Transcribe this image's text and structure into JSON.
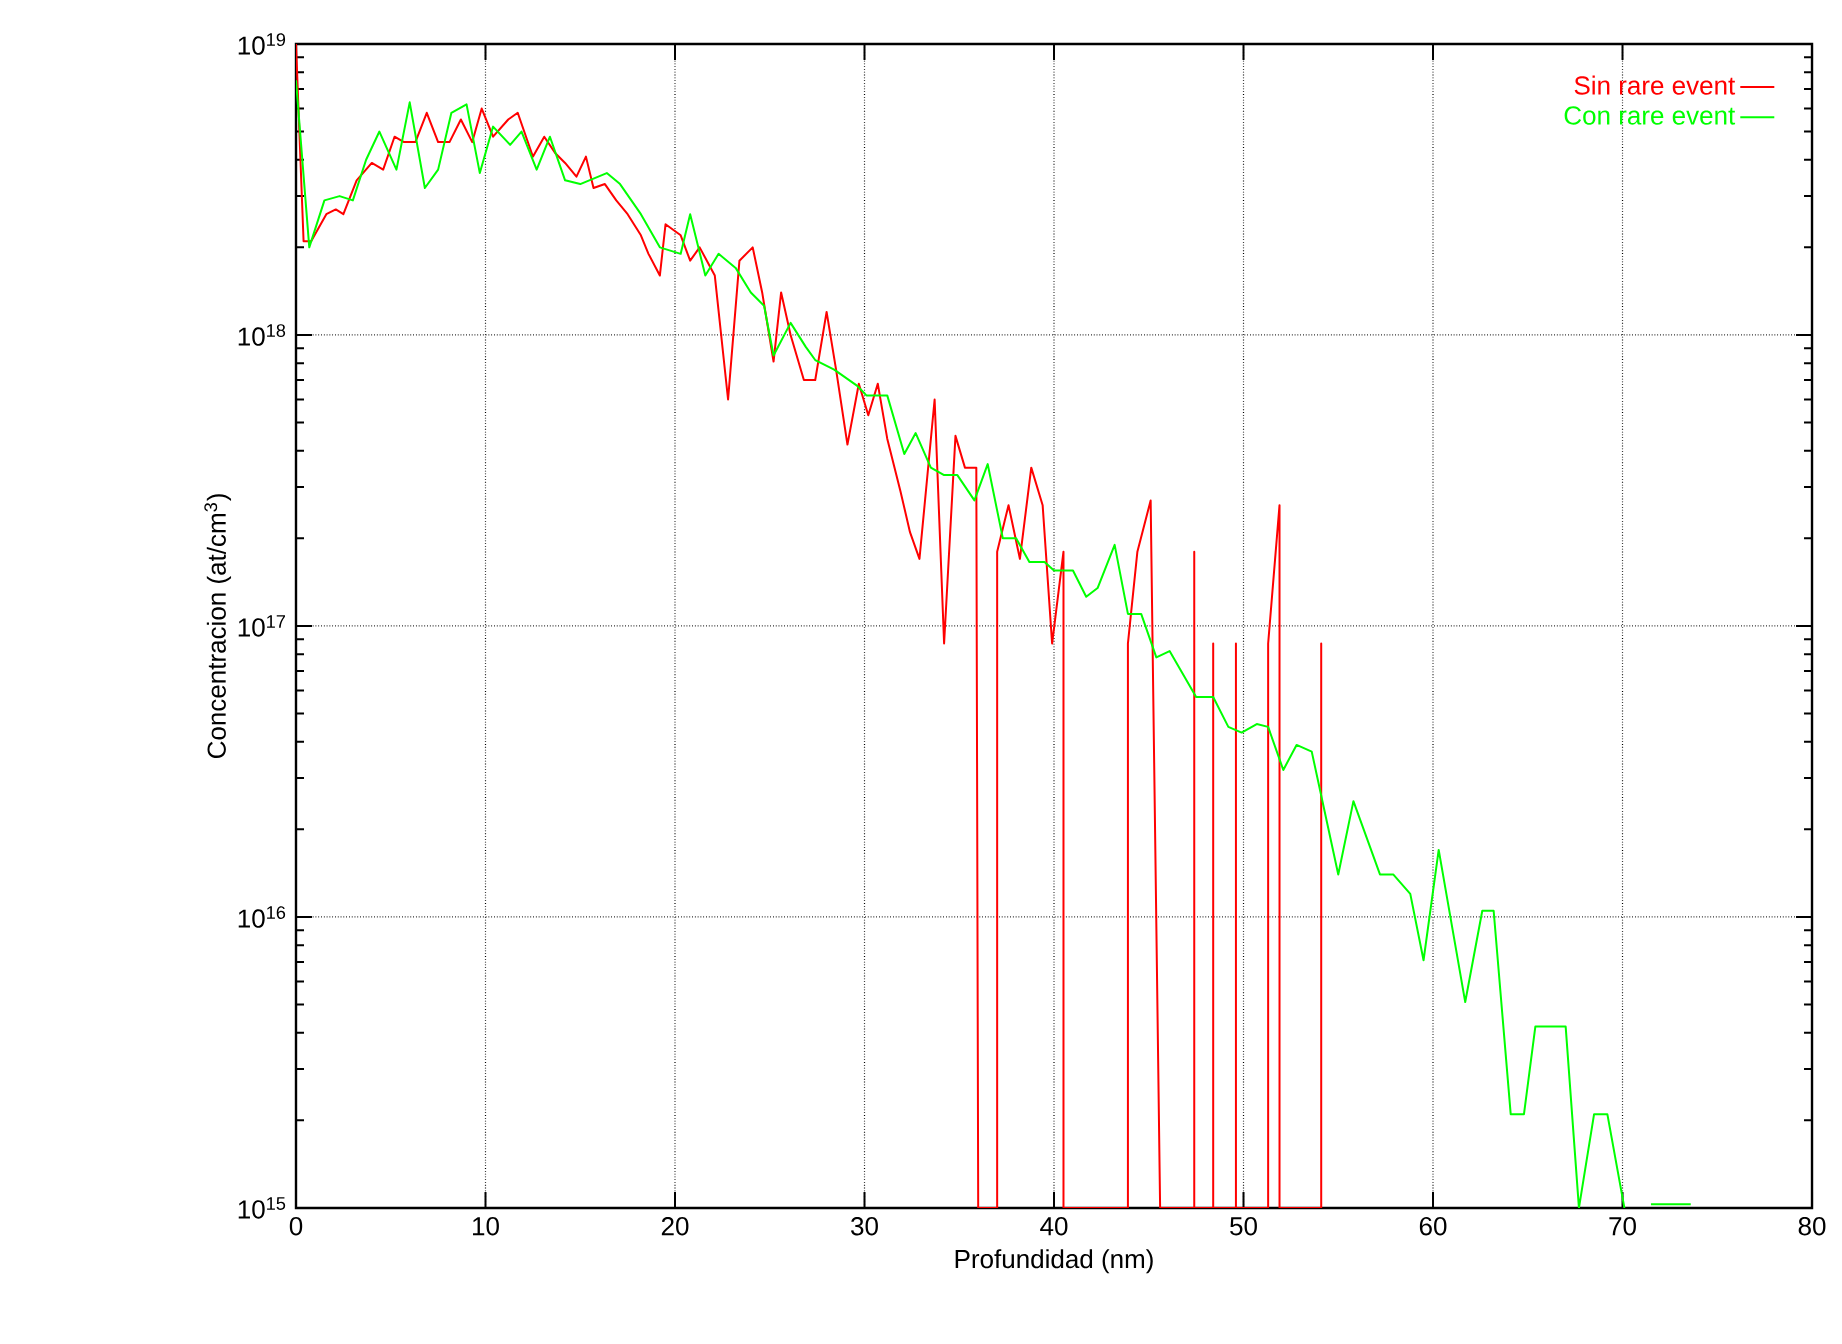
{
  "chart_data": {
    "type": "line",
    "xlabel": "Profundidad (nm)",
    "ylabel": "Concentracion (at/cm$^{3}$)",
    "log": "y",
    "grid": true,
    "legend": "top right",
    "xlim": [
      0,
      80
    ],
    "xticks": [
      0,
      10,
      20,
      30,
      40,
      50,
      60,
      70,
      80
    ],
    "ylim": [
      1000000000000000.0,
      1e+19
    ],
    "yticks": [
      {
        "value": 1000000000000000.0,
        "label": "10$^{15}$"
      },
      {
        "value": 1e+16,
        "label": "10$^{16}$"
      },
      {
        "value": 1e+17,
        "label": "10$^{17}$"
      },
      {
        "value": 1e+18,
        "label": "10$^{18}$"
      },
      {
        "value": 1e+19,
        "label": "10$^{19}$"
      }
    ],
    "series": [
      {
        "name": "Sin rare event",
        "color": "#ff0000",
        "x": [
          0,
          0.4,
          0.8,
          1.6,
          2.1,
          2.5,
          3.2,
          4.0,
          4.6,
          5.2,
          5.7,
          6.3,
          6.9,
          7.5,
          8.1,
          8.7,
          9.3,
          9.8,
          10.4,
          11.2,
          11.7,
          12.5,
          13.1,
          13.7,
          14.2,
          14.8,
          15.3,
          15.7,
          16.3,
          16.9,
          17.5,
          18.2,
          18.6,
          19.2,
          19.5,
          20.3,
          20.8,
          21.3,
          22.1,
          22.8,
          23.4,
          24.1,
          24.6,
          25.2,
          25.6,
          26.1,
          26.8,
          27.4,
          28.0,
          28.5,
          29.1,
          29.7,
          30.2,
          30.7,
          31.2,
          31.9,
          32.4,
          32.9,
          33.7,
          34.2,
          34.8,
          35.3,
          35.9,
          36.0,
          37.0,
          37.0,
          37.6,
          38.2,
          38.8,
          39.4,
          39.9,
          40.5,
          40.5,
          43.9,
          43.9,
          44.4,
          45.1,
          45.6,
          47.4,
          47.4,
          47.4,
          48.4,
          48.4,
          48.4,
          49.6,
          49.6,
          49.6,
          51.3,
          51.3,
          51.9,
          51.9,
          54.1,
          54.1,
          54.1
        ],
        "values": [
          1e+19,
          2.1e+18,
          2.1e+18,
          2.6e+18,
          2.7e+18,
          2.6e+18,
          3.4e+18,
          3.9e+18,
          3.7e+18,
          4.8e+18,
          4.6e+18,
          4.6e+18,
          5.8e+18,
          4.6e+18,
          4.6e+18,
          5.5e+18,
          4.6e+18,
          6e+18,
          4.8e+18,
          5.5e+18,
          5.8e+18,
          4.1e+18,
          4.8e+18,
          4.2e+18,
          3.9e+18,
          3.5e+18,
          4.1e+18,
          3.2e+18,
          3.3e+18,
          2.9e+18,
          2.6e+18,
          2.2e+18,
          1.9e+18,
          1.6e+18,
          2.4e+18,
          2.2e+18,
          1.8e+18,
          2e+18,
          1.6e+18,
          6e+17,
          1.8e+18,
          2e+18,
          1.4e+18,
          8.1e+17,
          1.4e+18,
          1e+18,
          7e+17,
          7e+17,
          1.2e+18,
          7.6e+17,
          4.2e+17,
          6.8e+17,
          5.3e+17,
          6.8e+17,
          4.4e+17,
          2.9e+17,
          2.1e+17,
          1.7e+17,
          6e+17,
          8.7e+16,
          4.5e+17,
          3.5e+17,
          3.5e+17,
          1000000000000000.0,
          1000000000000000.0,
          1.8e+17,
          2.6e+17,
          1.7e+17,
          3.5e+17,
          2.6e+17,
          8.7e+16,
          1.8e+17,
          1000000000000000.0,
          1000000000000000.0,
          8.7e+16,
          1.8e+17,
          2.7e+17,
          1000000000000000.0,
          1000000000000000.0,
          1.8e+17,
          1000000000000000.0,
          1000000000000000.0,
          8.7e+16,
          1000000000000000.0,
          1000000000000000.0,
          8.7e+16,
          1000000000000000.0,
          1000000000000000.0,
          8.7e+16,
          2.6e+17,
          1000000000000000.0,
          1000000000000000.0,
          8.7e+16,
          1000000000000000.0
        ]
      },
      {
        "name": "Con rare event",
        "color": "#00ff00",
        "x": [
          0,
          0.7,
          1.5,
          2.3,
          3.0,
          3.7,
          4.4,
          5.3,
          6.0,
          6.8,
          7.5,
          8.2,
          9.0,
          9.7,
          10.4,
          11.3,
          11.9,
          12.7,
          13.4,
          14.2,
          15.0,
          16.4,
          17.1,
          18.2,
          19.2,
          20.3,
          20.8,
          21.6,
          22.3,
          23.2,
          24.0,
          24.7,
          25.2,
          26.1,
          26.9,
          27.4,
          28.4,
          29.6,
          30.1,
          31.2,
          32.1,
          32.7,
          33.5,
          34.2,
          34.9,
          35.8,
          36.5,
          37.3,
          38.0,
          38.7,
          39.5,
          40.0,
          41.0,
          41.7,
          42.3,
          43.2,
          43.9,
          44.6,
          45.4,
          46.1,
          47.5,
          48.4,
          49.2,
          49.9,
          50.7,
          51.3,
          52.1,
          52.8,
          53.6,
          55.0,
          55.8,
          57.2,
          57.9,
          58.8,
          59.5,
          60.3,
          61.7,
          62.6,
          63.2,
          64.1,
          64.8,
          65.4,
          67.0,
          67.7,
          68.5,
          69.2,
          70.1,
          71.0,
          71.5,
          73.6
        ],
        "values": [
          7.5e+18,
          2e+18,
          2.9e+18,
          3e+18,
          2.9e+18,
          4e+18,
          5e+18,
          3.7e+18,
          6.3e+18,
          3.2e+18,
          3.7e+18,
          5.8e+18,
          6.2e+18,
          3.6e+18,
          5.2e+18,
          4.5e+18,
          5e+18,
          3.7e+18,
          4.8e+18,
          3.4e+18,
          3.3e+18,
          3.6e+18,
          3.3e+18,
          2.6e+18,
          2e+18,
          1.9e+18,
          2.6e+18,
          1.6e+18,
          1.9e+18,
          1.7e+18,
          1.4e+18,
          1.26e+18,
          8.5e+17,
          1.1e+18,
          9.1e+17,
          8.2e+17,
          7.6e+17,
          6.7e+17,
          6.2e+17,
          6.2e+17,
          3.9e+17,
          4.6e+17,
          3.5e+17,
          3.3e+17,
          3.3e+17,
          2.7e+17,
          3.6e+17,
          2e+17,
          2e+17,
          1.66e+17,
          1.66e+17,
          1.55e+17,
          1.55e+17,
          1.26e+17,
          1.35e+17,
          1.9e+17,
          1.1e+17,
          1.1e+17,
          7.8e+16,
          8.2e+16,
          5.7e+16,
          5.7e+16,
          4.5e+16,
          4.3e+16,
          4.6e+16,
          4.5e+16,
          3.2e+16,
          3.9e+16,
          3.7e+16,
          1.4e+16,
          2.5e+16,
          1.4e+16,
          1.4e+16,
          1.2e+16,
          7100000000000000.0,
          1.7e+16,
          5100000000000000.0,
          1.05e+16,
          1.05e+16,
          2100000000000000.0,
          2100000000000000.0,
          4200000000000000.0,
          4200000000000000.0,
          1000000000000000.0,
          2100000000000000.0,
          2100000000000000.0,
          1000000000000000.0,
          null,
          1030000000000000.0,
          1030000000000000.0
        ]
      }
    ]
  }
}
